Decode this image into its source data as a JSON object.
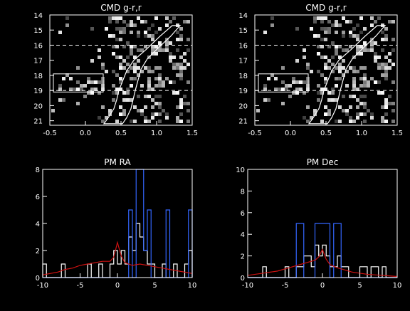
{
  "chart_data": [
    {
      "type": "heatmap",
      "title": "CMD g-r,r",
      "xlim": [
        -0.5,
        1.5
      ],
      "ylim": [
        21.3,
        14
      ],
      "x_ticks": [
        -0.5,
        0.0,
        0.5,
        1.0,
        1.5
      ],
      "x_tick_labels": [
        "-0.5",
        "0.0",
        "0.5",
        "1.0",
        "1.5"
      ],
      "y_ticks": [
        14,
        15,
        16,
        17,
        18,
        19,
        20,
        21
      ],
      "y_tick_labels": [
        "14",
        "15",
        "16",
        "17",
        "18",
        "19",
        "20",
        "21"
      ],
      "dashed_lines_y": [
        16,
        19
      ],
      "box": {
        "x": [
          -0.45,
          0.25
        ],
        "y": [
          17.9,
          19.1
        ]
      },
      "isochrone_left": [
        [
          1.22,
          14.7
        ],
        [
          1.05,
          15.4
        ],
        [
          0.85,
          16.3
        ],
        [
          0.68,
          17.0
        ],
        [
          0.58,
          17.7
        ],
        [
          0.52,
          18.4
        ],
        [
          0.47,
          19.0
        ],
        [
          0.44,
          19.6
        ],
        [
          0.4,
          20.2
        ],
        [
          0.32,
          20.8
        ],
        [
          0.26,
          21.2
        ]
      ],
      "isochrone_right": [
        [
          1.33,
          14.7
        ],
        [
          1.2,
          15.4
        ],
        [
          1.02,
          16.2
        ],
        [
          0.87,
          16.9
        ],
        [
          0.78,
          17.6
        ],
        [
          0.74,
          18.3
        ],
        [
          0.7,
          19.0
        ],
        [
          0.67,
          19.6
        ],
        [
          0.64,
          20.2
        ],
        [
          0.58,
          20.8
        ],
        [
          0.52,
          21.2
        ]
      ],
      "grid": false
    },
    {
      "type": "heatmap",
      "title": "CMD g-r,r",
      "xlim": [
        -0.5,
        1.5
      ],
      "ylim": [
        21.3,
        14
      ],
      "x_ticks": [
        -0.5,
        0.0,
        0.5,
        1.0,
        1.5
      ],
      "x_tick_labels": [
        "-0.5",
        "0.0",
        "0.5",
        "1.0",
        "1.5"
      ],
      "y_ticks": [
        14,
        15,
        16,
        17,
        18,
        19,
        20,
        21
      ],
      "y_tick_labels": [
        "14",
        "15",
        "16",
        "17",
        "18",
        "19",
        "20",
        "21"
      ],
      "dashed_lines_y": [
        16,
        19
      ],
      "box": {
        "x": [
          -0.45,
          0.25
        ],
        "y": [
          17.9,
          19.1
        ]
      },
      "isochrone_left": [
        [
          1.22,
          14.7
        ],
        [
          1.05,
          15.4
        ],
        [
          0.85,
          16.3
        ],
        [
          0.68,
          17.0
        ],
        [
          0.58,
          17.7
        ],
        [
          0.52,
          18.4
        ],
        [
          0.47,
          19.0
        ],
        [
          0.44,
          19.6
        ],
        [
          0.4,
          20.2
        ],
        [
          0.32,
          20.8
        ],
        [
          0.26,
          21.2
        ]
      ],
      "isochrone_right": [
        [
          1.33,
          14.7
        ],
        [
          1.2,
          15.4
        ],
        [
          1.02,
          16.2
        ],
        [
          0.87,
          16.9
        ],
        [
          0.78,
          17.6
        ],
        [
          0.74,
          18.3
        ],
        [
          0.7,
          19.0
        ],
        [
          0.67,
          19.6
        ],
        [
          0.64,
          20.2
        ],
        [
          0.58,
          20.8
        ],
        [
          0.52,
          21.2
        ]
      ],
      "grid": false
    },
    {
      "type": "line",
      "title": "PM RA",
      "xlim": [
        -10,
        10
      ],
      "ylim": [
        0,
        8
      ],
      "x_ticks": [
        -10,
        -5,
        0,
        5,
        10
      ],
      "x_tick_labels": [
        "-10",
        "-5",
        "0",
        "5",
        "10"
      ],
      "y_ticks": [
        0,
        2,
        4,
        6,
        8
      ],
      "y_tick_labels": [
        "0",
        "2",
        "4",
        "6",
        "8"
      ],
      "series": [
        {
          "color": "#ffffff",
          "style": "step",
          "bin_edges": [
            -10.0,
            -9.5,
            -9.0,
            -8.5,
            -8.0,
            -7.5,
            -7.0,
            -6.5,
            -6.0,
            -5.5,
            -5.0,
            -4.5,
            -4.0,
            -3.5,
            -3.0,
            -2.5,
            -2.0,
            -1.5,
            -1.0,
            -0.5,
            0.0,
            0.5,
            1.0,
            1.5,
            2.0,
            2.5,
            3.0,
            3.5,
            4.0,
            4.5,
            5.0,
            5.5,
            6.0,
            6.5,
            7.0,
            7.5,
            8.0,
            8.5,
            9.0,
            9.5,
            10.0
          ],
          "values": [
            1,
            0,
            0,
            0,
            0,
            1,
            0,
            0,
            0,
            0,
            0,
            0,
            1,
            0,
            0,
            1,
            0,
            0,
            1,
            2,
            1,
            2,
            1,
            3,
            2,
            4,
            3,
            2,
            1,
            1,
            0,
            0,
            1,
            0,
            0,
            1,
            0,
            0,
            1,
            2
          ]
        },
        {
          "color": "#3366ff",
          "style": "step",
          "bin_edges": [
            -10.0,
            -9.5,
            -9.0,
            -8.5,
            -8.0,
            -7.5,
            -7.0,
            -6.5,
            -6.0,
            -5.5,
            -5.0,
            -4.5,
            -4.0,
            -3.5,
            -3.0,
            -2.5,
            -2.0,
            -1.5,
            -1.0,
            -0.5,
            0.0,
            0.5,
            1.0,
            1.5,
            2.0,
            2.5,
            3.0,
            3.5,
            4.0,
            4.5,
            5.0,
            5.5,
            6.0,
            6.5,
            7.0,
            7.5,
            8.0,
            8.5,
            9.0,
            9.5,
            10.0
          ],
          "values": [
            0,
            0,
            0,
            0,
            0,
            0,
            0,
            0,
            0,
            0,
            0,
            0,
            0,
            0,
            0,
            0,
            0,
            0,
            0,
            0,
            0,
            0,
            0,
            5,
            0,
            8,
            8,
            2,
            5,
            0,
            0,
            0,
            0,
            5,
            0,
            0,
            0,
            0,
            0,
            5
          ]
        },
        {
          "color": "#cc1111",
          "style": "line",
          "x": [
            -10,
            -9,
            -8,
            -7,
            -6,
            -5,
            -4,
            -3,
            -2,
            -1,
            -0.5,
            0,
            0.5,
            1,
            2,
            3,
            4,
            5,
            6,
            7,
            8,
            9,
            10
          ],
          "y": [
            0.2,
            0.3,
            0.4,
            0.6,
            0.7,
            0.9,
            1.0,
            1.1,
            1.2,
            1.2,
            1.5,
            2.6,
            1.6,
            1.1,
            0.9,
            1.0,
            0.9,
            0.8,
            0.7,
            0.6,
            0.5,
            0.4,
            0.3
          ]
        }
      ],
      "grid": false
    },
    {
      "type": "line",
      "title": "PM Dec",
      "xlim": [
        -10,
        10
      ],
      "ylim": [
        0,
        10
      ],
      "x_ticks": [
        -10,
        -5,
        0,
        5,
        10
      ],
      "x_tick_labels": [
        "-10",
        "-5",
        "0",
        "5",
        "10"
      ],
      "y_ticks": [
        0,
        2,
        4,
        6,
        8,
        10
      ],
      "y_tick_labels": [
        "0",
        "2",
        "4",
        "6",
        "8",
        "10"
      ],
      "series": [
        {
          "color": "#ffffff",
          "style": "step",
          "bin_edges": [
            -10.0,
            -9.5,
            -9.0,
            -8.5,
            -8.0,
            -7.5,
            -7.0,
            -6.5,
            -6.0,
            -5.5,
            -5.0,
            -4.5,
            -4.0,
            -3.5,
            -3.0,
            -2.5,
            -2.0,
            -1.5,
            -1.0,
            -0.5,
            0.0,
            0.5,
            1.0,
            1.5,
            2.0,
            2.5,
            3.0,
            3.5,
            4.0,
            4.5,
            5.0,
            5.5,
            6.0,
            6.5,
            7.0,
            7.5,
            8.0,
            8.5,
            9.0,
            9.5,
            10.0
          ],
          "values": [
            0,
            0,
            0,
            0,
            1,
            0,
            0,
            0,
            0,
            0,
            1,
            0,
            0,
            1,
            1,
            2,
            2,
            1,
            3,
            2,
            3,
            2,
            1,
            1,
            2,
            1,
            1,
            0,
            0,
            0,
            1,
            1,
            0,
            1,
            1,
            0,
            1,
            0,
            0,
            0
          ]
        },
        {
          "color": "#3366ff",
          "style": "step",
          "bin_edges": [
            -10.0,
            -9.5,
            -9.0,
            -8.5,
            -8.0,
            -7.5,
            -7.0,
            -6.5,
            -6.0,
            -5.5,
            -5.0,
            -4.5,
            -4.0,
            -3.5,
            -3.0,
            -2.5,
            -2.0,
            -1.5,
            -1.0,
            -0.5,
            0.0,
            0.5,
            1.0,
            1.5,
            2.0,
            2.5,
            3.0,
            3.5,
            4.0,
            4.5,
            5.0,
            5.5,
            6.0,
            6.5,
            7.0,
            7.5,
            8.0,
            8.5,
            9.0,
            9.5,
            10.0
          ],
          "values": [
            0,
            0,
            0,
            0,
            0,
            0,
            0,
            0,
            0,
            0,
            0,
            0,
            0,
            5,
            5,
            0,
            0,
            0,
            5,
            5,
            5,
            5,
            0,
            5,
            5,
            0,
            0,
            0,
            0,
            0,
            0,
            0,
            0,
            0,
            0,
            0,
            0,
            0,
            0,
            0
          ]
        },
        {
          "color": "#cc1111",
          "style": "line",
          "x": [
            -10,
            -9,
            -8,
            -7,
            -6,
            -5,
            -4,
            -3,
            -2,
            -1,
            -0.5,
            0,
            0.5,
            1,
            2,
            3,
            4,
            5,
            6,
            7,
            8,
            9,
            10
          ],
          "y": [
            0.2,
            0.3,
            0.4,
            0.5,
            0.6,
            0.8,
            1.0,
            1.2,
            1.4,
            1.6,
            1.9,
            2.6,
            1.7,
            1.2,
            0.9,
            0.7,
            0.5,
            0.4,
            0.3,
            0.25,
            0.2,
            0.15,
            0.1
          ]
        }
      ],
      "grid": false
    }
  ],
  "density_grid": {
    "x_range": [
      -0.5,
      1.5
    ],
    "y_range": [
      21.3,
      14
    ],
    "rows_from_top": [
      "00000000000000000000000010000000000000000000",
      "00000000000000000000000000000000000000000000",
      "00000000000000000000000000000000000000000000",
      "00000000000000000000000000000000000000000000",
      "00000000000000000000000000000000000000000000",
      "00000000000000000000000000000000000000000000",
      "00000000000000000000000000000000000000000000",
      "00000000000000000000000000000000000000000000",
      "00000000000000000000000000000000000000000000",
      "00000000000000000000000000000000000000000000",
      "00000000000000000000000000000000000000000000",
      "00000000000000000000000000000000000000000000",
      "00000000000000000000000000000000000000000000",
      "00000000000000000000000000000000000000000000",
      "00000000000000000000000000000000000000000000",
      "00000000000000000000000000000000000000000000",
      "00000000000000000000000000000000000000000000",
      "00000000000000000000000000000000000000000000",
      "00000000000000000000000000000000000000000000",
      "00000000000000000000000000000000000000000000",
      "00000000000000000000000000000000000000000000",
      "00000000000000000000000000000000000000000000",
      "00000000000000000000000000000000000000000000",
      "00000000000000000000000000000000000000000000",
      "00000000000000000000000000000000000000000000",
      "00000000000000000000000000000000000000000000",
      "00000000000000000000000000000000000000000000",
      "00000000000000000000000000000000000000000000",
      "00000000000000000000000000000000000000000000",
      "00000000000000000000000000000000000000000000",
      "00000000000000000000000000000000000000000000",
      "00000000000000000000000000000000000000000000",
      "00000000000000000000000000000000000000000000",
      "00000000000000000000000000000000000000000000",
      "00000000000000000000000000000000000000000000",
      "00000000000000000000000000000000000000000000"
    ]
  }
}
